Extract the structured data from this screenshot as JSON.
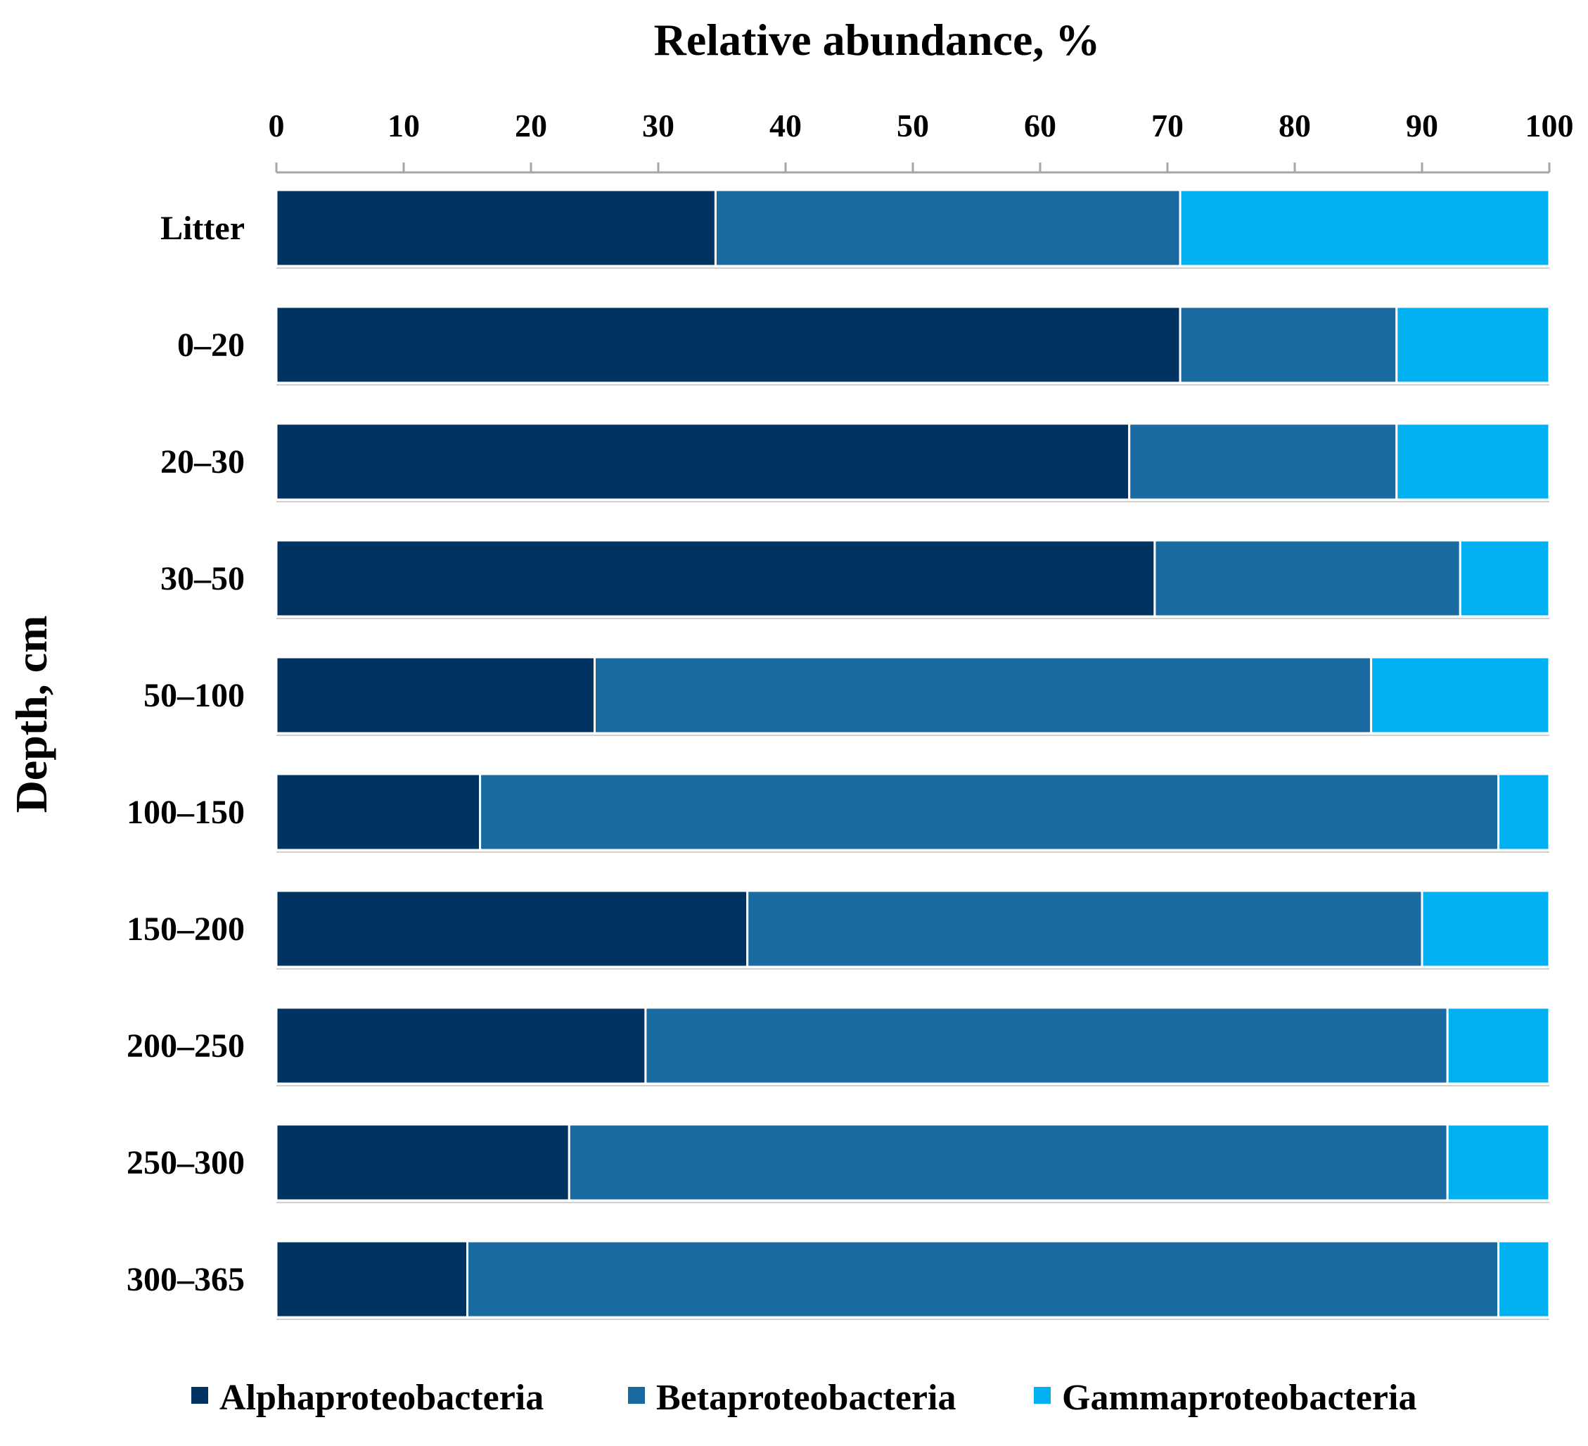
{
  "chart_data": {
    "type": "bar",
    "orientation": "horizontal",
    "stacked": true,
    "title": "Relative abundance, %",
    "xlabel": "Relative abundance, %",
    "ylabel": "Depth, cm",
    "xlim": [
      0,
      100
    ],
    "x_ticks": [
      "0",
      "10",
      "20",
      "30",
      "40",
      "50",
      "60",
      "70",
      "80",
      "90",
      "100"
    ],
    "categories": [
      "Litter",
      "0–20",
      "20–30",
      "30–50",
      "50–100",
      "100–150",
      "150–200",
      "200–250",
      "250–300",
      "300–365"
    ],
    "series": [
      {
        "name": "Alphaproteobacteria",
        "color": "#003361",
        "values": [
          34.5,
          71,
          67,
          69,
          25,
          16,
          37,
          29,
          23,
          15
        ]
      },
      {
        "name": "Betaproteobacteria",
        "color": "#1a6aa2",
        "values": [
          36.5,
          17,
          21,
          24,
          61,
          80,
          53,
          63,
          69,
          81
        ]
      },
      {
        "name": "Gammaproteobacteria",
        "color": "#00b0f0",
        "values": [
          29,
          12,
          12,
          7,
          14,
          4,
          10,
          8,
          8,
          4
        ]
      }
    ],
    "legend_position": "bottom",
    "grid": false
  }
}
